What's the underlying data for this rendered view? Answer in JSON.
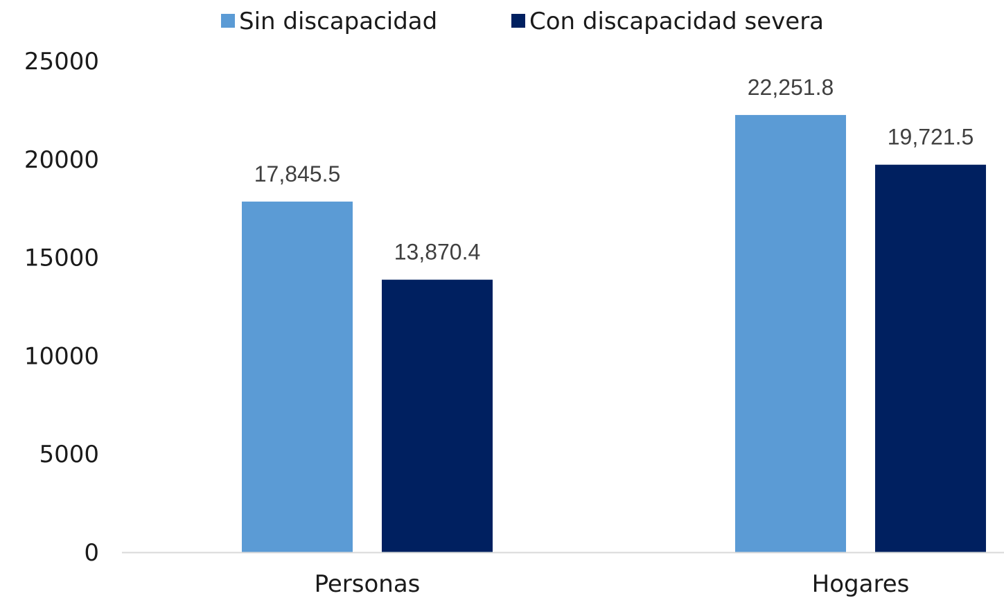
{
  "chart_data": {
    "type": "bar",
    "categories": [
      "Personas",
      "Hogares"
    ],
    "series": [
      {
        "name": "Sin discapacidad",
        "color": "#5b9bd5",
        "values": [
          17845.5,
          22251.8
        ],
        "labels": [
          "17,845.5",
          "22,251.8"
        ]
      },
      {
        "name": "Con discapacidad severa",
        "color": "#002060",
        "values": [
          13870.4,
          19721.5
        ],
        "labels": [
          "13,870.4",
          "19,721.5"
        ]
      }
    ],
    "title": "",
    "xlabel": "",
    "ylabel": "",
    "ylim": [
      0,
      25000
    ],
    "yticks": [
      0,
      5000,
      10000,
      15000,
      20000,
      25000
    ],
    "ytick_labels": [
      "0",
      "5000",
      "10000",
      "15000",
      "20000",
      "25000"
    ],
    "grid": false,
    "legend_position": "top-center",
    "axis_color": "#d9d9d9"
  }
}
